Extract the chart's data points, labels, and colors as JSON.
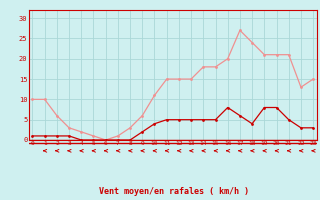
{
  "x": [
    0,
    1,
    2,
    3,
    4,
    5,
    6,
    7,
    8,
    9,
    10,
    11,
    12,
    13,
    14,
    15,
    16,
    17,
    18,
    19,
    20,
    21,
    22,
    23
  ],
  "wind_avg": [
    1,
    1,
    1,
    1,
    0,
    0,
    0,
    0,
    0,
    2,
    4,
    5,
    5,
    5,
    5,
    5,
    8,
    6,
    4,
    8,
    8,
    5,
    3,
    3
  ],
  "wind_gust": [
    10,
    10,
    6,
    3,
    2,
    1,
    0,
    1,
    3,
    6,
    11,
    15,
    15,
    15,
    18,
    18,
    20,
    27,
    24,
    21,
    21,
    21,
    13,
    15
  ],
  "bg_color": "#cff0f0",
  "grid_color": "#aad8d8",
  "avg_color": "#cc0000",
  "gust_color": "#f09090",
  "xlabel": "Vent moyen/en rafales ( km/h )",
  "xlabel_color": "#cc0000",
  "yticks": [
    0,
    5,
    10,
    15,
    20,
    25,
    30
  ],
  "ylim": [
    0,
    32
  ],
  "xlim": [
    -0.3,
    23.3
  ]
}
